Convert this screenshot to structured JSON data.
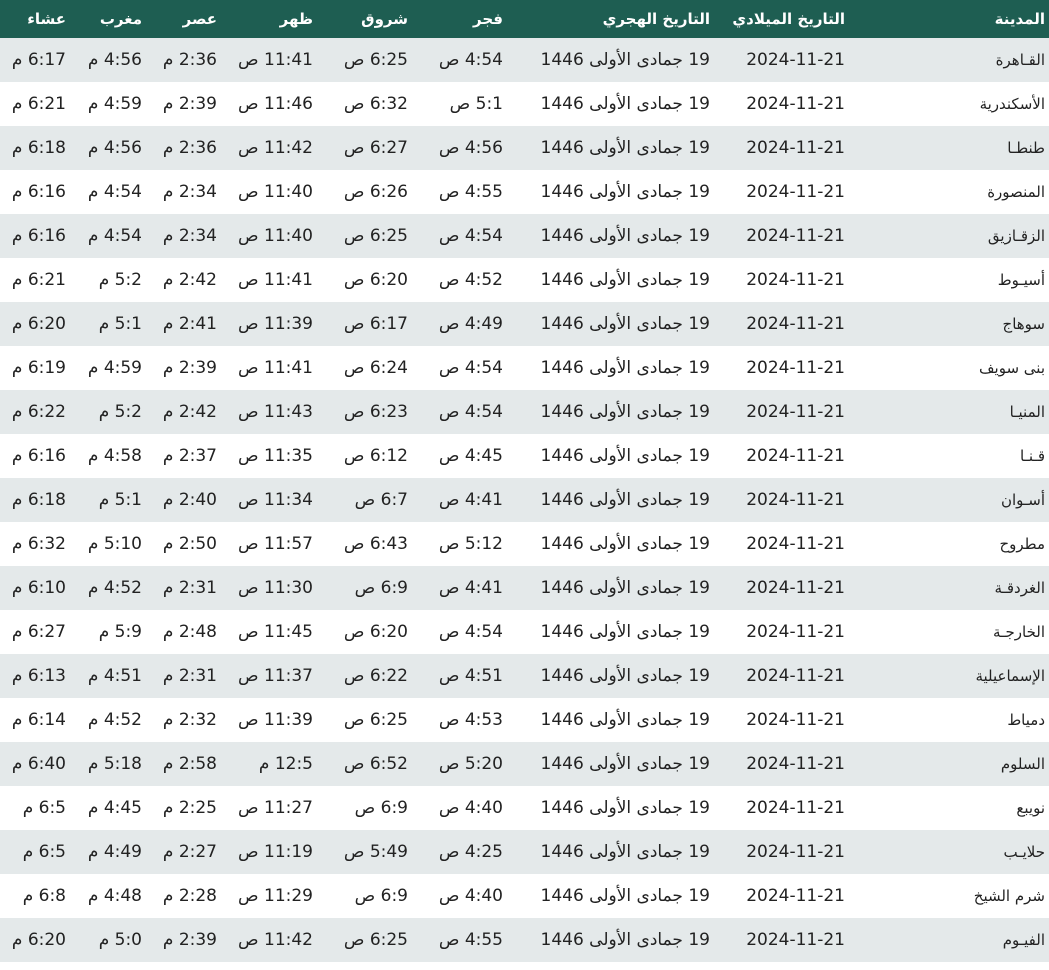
{
  "colors": {
    "header": "#1e5e52",
    "row_alt": "#e4e9ea"
  },
  "headers": [
    "المدينة",
    "التاريخ الميلادي",
    "التاريخ الهجري",
    "فجر",
    "شروق",
    "ظهر",
    "عصر",
    "مغرب",
    "عشاء"
  ],
  "rows": [
    [
      "القـاهرة",
      "2024-11-21",
      "19 جمادى الأولى 1446",
      "4:54 ص",
      "6:25 ص",
      "11:41 ص",
      "2:36 م",
      "4:56 م",
      "6:17 م"
    ],
    [
      "الأسكندرية",
      "2024-11-21",
      "19 جمادى الأولى 1446",
      "5:1 ص",
      "6:32 ص",
      "11:46 ص",
      "2:39 م",
      "4:59 م",
      "6:21 م"
    ],
    [
      "طنطـا",
      "2024-11-21",
      "19 جمادى الأولى 1446",
      "4:56 ص",
      "6:27 ص",
      "11:42 ص",
      "2:36 م",
      "4:56 م",
      "6:18 م"
    ],
    [
      "المنصورة",
      "2024-11-21",
      "19 جمادى الأولى 1446",
      "4:55 ص",
      "6:26 ص",
      "11:40 ص",
      "2:34 م",
      "4:54 م",
      "6:16 م"
    ],
    [
      "الزقـازيق",
      "2024-11-21",
      "19 جمادى الأولى 1446",
      "4:54 ص",
      "6:25 ص",
      "11:40 ص",
      "2:34 م",
      "4:54 م",
      "6:16 م"
    ],
    [
      "أسيـوط",
      "2024-11-21",
      "19 جمادى الأولى 1446",
      "4:52 ص",
      "6:20 ص",
      "11:41 ص",
      "2:42 م",
      "5:2 م",
      "6:21 م"
    ],
    [
      "سوهاج",
      "2024-11-21",
      "19 جمادى الأولى 1446",
      "4:49 ص",
      "6:17 ص",
      "11:39 ص",
      "2:41 م",
      "5:1 م",
      "6:20 م"
    ],
    [
      "بنى سويف",
      "2024-11-21",
      "19 جمادى الأولى 1446",
      "4:54 ص",
      "6:24 ص",
      "11:41 ص",
      "2:39 م",
      "4:59 م",
      "6:19 م"
    ],
    [
      "المنيـا",
      "2024-11-21",
      "19 جمادى الأولى 1446",
      "4:54 ص",
      "6:23 ص",
      "11:43 ص",
      "2:42 م",
      "5:2 م",
      "6:22 م"
    ],
    [
      "قـنـا",
      "2024-11-21",
      "19 جمادى الأولى 1446",
      "4:45 ص",
      "6:12 ص",
      "11:35 ص",
      "2:37 م",
      "4:58 م",
      "6:16 م"
    ],
    [
      "أسـوان",
      "2024-11-21",
      "19 جمادى الأولى 1446",
      "4:41 ص",
      "6:7 ص",
      "11:34 ص",
      "2:40 م",
      "5:1 م",
      "6:18 م"
    ],
    [
      "مطروح",
      "2024-11-21",
      "19 جمادى الأولى 1446",
      "5:12 ص",
      "6:43 ص",
      "11:57 ص",
      "2:50 م",
      "5:10 م",
      "6:32 م"
    ],
    [
      "الغردقـة",
      "2024-11-21",
      "19 جمادى الأولى 1446",
      "4:41 ص",
      "6:9 ص",
      "11:30 ص",
      "2:31 م",
      "4:52 م",
      "6:10 م"
    ],
    [
      "الخارجـة",
      "2024-11-21",
      "19 جمادى الأولى 1446",
      "4:54 ص",
      "6:20 ص",
      "11:45 ص",
      "2:48 م",
      "5:9 م",
      "6:27 م"
    ],
    [
      "الإسماعيلية",
      "2024-11-21",
      "19 جمادى الأولى 1446",
      "4:51 ص",
      "6:22 ص",
      "11:37 ص",
      "2:31 م",
      "4:51 م",
      "6:13 م"
    ],
    [
      "دمياط",
      "2024-11-21",
      "19 جمادى الأولى 1446",
      "4:53 ص",
      "6:25 ص",
      "11:39 ص",
      "2:32 م",
      "4:52 م",
      "6:14 م"
    ],
    [
      "السلوم",
      "2024-11-21",
      "19 جمادى الأولى 1446",
      "5:20 ص",
      "6:52 ص",
      "12:5 م",
      "2:58 م",
      "5:18 م",
      "6:40 م"
    ],
    [
      "نويبع",
      "2024-11-21",
      "19 جمادى الأولى 1446",
      "4:40 ص",
      "6:9 ص",
      "11:27 ص",
      "2:25 م",
      "4:45 م",
      "6:5 م"
    ],
    [
      "حلايـب",
      "2024-11-21",
      "19 جمادى الأولى 1446",
      "4:25 ص",
      "5:49 ص",
      "11:19 ص",
      "2:27 م",
      "4:49 م",
      "6:5 م"
    ],
    [
      "شرم الشيخ",
      "2024-11-21",
      "19 جمادى الأولى 1446",
      "4:40 ص",
      "6:9 ص",
      "11:29 ص",
      "2:28 م",
      "4:48 م",
      "6:8 م"
    ],
    [
      "الفيـوم",
      "2024-11-21",
      "19 جمادى الأولى 1446",
      "4:55 ص",
      "6:25 ص",
      "11:42 ص",
      "2:39 م",
      "5:0 م",
      "6:20 م"
    ]
  ]
}
